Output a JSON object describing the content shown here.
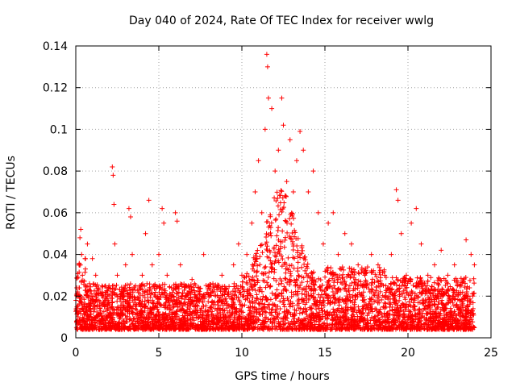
{
  "chart_data": {
    "type": "scatter",
    "title": "Day 040 of 2024, Rate Of TEC Index for receiver wwlg",
    "xlabel": "GPS time / hours",
    "ylabel": "ROTI / TECUs",
    "xlim": [
      0,
      25
    ],
    "ylim": [
      0,
      0.14
    ],
    "xticks": [
      0,
      5,
      10,
      15,
      20,
      25
    ],
    "xtick_labels": [
      "0",
      "5",
      "10",
      "15",
      "20",
      "25"
    ],
    "yticks": [
      0,
      0.02,
      0.04,
      0.06,
      0.08,
      0.1,
      0.12,
      0.14
    ],
    "ytick_labels": [
      "0",
      "0.02",
      "0.04",
      "0.06",
      "0.08",
      "0.1",
      "0.12",
      "0.14"
    ],
    "grid": true,
    "marker": "+",
    "color": "#ff0000",
    "series": [
      {
        "name": "ROTI",
        "points": [
          [
            0.05,
            0.008
          ],
          [
            0.1,
            0.012
          ],
          [
            0.15,
            0.02
          ],
          [
            0.2,
            0.035
          ],
          [
            0.25,
            0.048
          ],
          [
            0.3,
            0.052
          ],
          [
            0.35,
            0.04
          ],
          [
            0.4,
            0.03
          ],
          [
            0.5,
            0.015
          ],
          [
            0.6,
            0.025
          ],
          [
            0.7,
            0.045
          ],
          [
            0.8,
            0.02
          ],
          [
            1.0,
            0.038
          ],
          [
            1.2,
            0.03
          ],
          [
            1.4,
            0.018
          ],
          [
            1.6,
            0.022
          ],
          [
            1.8,
            0.015
          ],
          [
            2.0,
            0.025
          ],
          [
            2.2,
            0.082
          ],
          [
            2.25,
            0.078
          ],
          [
            2.3,
            0.064
          ],
          [
            2.35,
            0.045
          ],
          [
            2.5,
            0.03
          ],
          [
            2.8,
            0.02
          ],
          [
            3.0,
            0.035
          ],
          [
            3.2,
            0.062
          ],
          [
            3.3,
            0.058
          ],
          [
            3.4,
            0.04
          ],
          [
            3.6,
            0.025
          ],
          [
            3.8,
            0.018
          ],
          [
            4.0,
            0.03
          ],
          [
            4.2,
            0.05
          ],
          [
            4.4,
            0.066
          ],
          [
            4.6,
            0.035
          ],
          [
            4.8,
            0.02
          ],
          [
            5.0,
            0.04
          ],
          [
            5.2,
            0.062
          ],
          [
            5.3,
            0.055
          ],
          [
            5.5,
            0.03
          ],
          [
            5.8,
            0.02
          ],
          [
            6.0,
            0.06
          ],
          [
            6.1,
            0.056
          ],
          [
            6.3,
            0.035
          ],
          [
            6.6,
            0.02
          ],
          [
            7.0,
            0.028
          ],
          [
            7.4,
            0.018
          ],
          [
            7.7,
            0.04
          ],
          [
            8.0,
            0.025
          ],
          [
            8.4,
            0.02
          ],
          [
            8.8,
            0.03
          ],
          [
            9.2,
            0.022
          ],
          [
            9.5,
            0.035
          ],
          [
            9.8,
            0.045
          ],
          [
            10.0,
            0.03
          ],
          [
            10.3,
            0.04
          ],
          [
            10.6,
            0.055
          ],
          [
            10.8,
            0.07
          ],
          [
            11.0,
            0.085
          ],
          [
            11.2,
            0.06
          ],
          [
            11.4,
            0.1
          ],
          [
            11.5,
            0.136
          ],
          [
            11.55,
            0.13
          ],
          [
            11.6,
            0.115
          ],
          [
            11.8,
            0.11
          ],
          [
            12.0,
            0.08
          ],
          [
            12.2,
            0.09
          ],
          [
            12.4,
            0.115
          ],
          [
            12.5,
            0.102
          ],
          [
            12.7,
            0.075
          ],
          [
            12.9,
            0.095
          ],
          [
            13.1,
            0.07
          ],
          [
            13.3,
            0.085
          ],
          [
            13.5,
            0.099
          ],
          [
            13.7,
            0.09
          ],
          [
            14.0,
            0.07
          ],
          [
            14.3,
            0.08
          ],
          [
            14.6,
            0.06
          ],
          [
            14.9,
            0.045
          ],
          [
            15.2,
            0.055
          ],
          [
            15.5,
            0.06
          ],
          [
            15.8,
            0.04
          ],
          [
            16.2,
            0.05
          ],
          [
            16.6,
            0.045
          ],
          [
            17.0,
            0.035
          ],
          [
            17.4,
            0.03
          ],
          [
            17.8,
            0.04
          ],
          [
            18.2,
            0.035
          ],
          [
            18.6,
            0.03
          ],
          [
            19.0,
            0.04
          ],
          [
            19.3,
            0.071
          ],
          [
            19.4,
            0.066
          ],
          [
            19.6,
            0.05
          ],
          [
            19.9,
            0.03
          ],
          [
            20.2,
            0.055
          ],
          [
            20.5,
            0.062
          ],
          [
            20.8,
            0.045
          ],
          [
            21.2,
            0.03
          ],
          [
            21.6,
            0.035
          ],
          [
            22.0,
            0.042
          ],
          [
            22.4,
            0.03
          ],
          [
            22.8,
            0.035
          ],
          [
            23.2,
            0.025
          ],
          [
            23.5,
            0.047
          ],
          [
            23.8,
            0.04
          ],
          [
            24.0,
            0.035
          ]
        ]
      }
    ]
  }
}
